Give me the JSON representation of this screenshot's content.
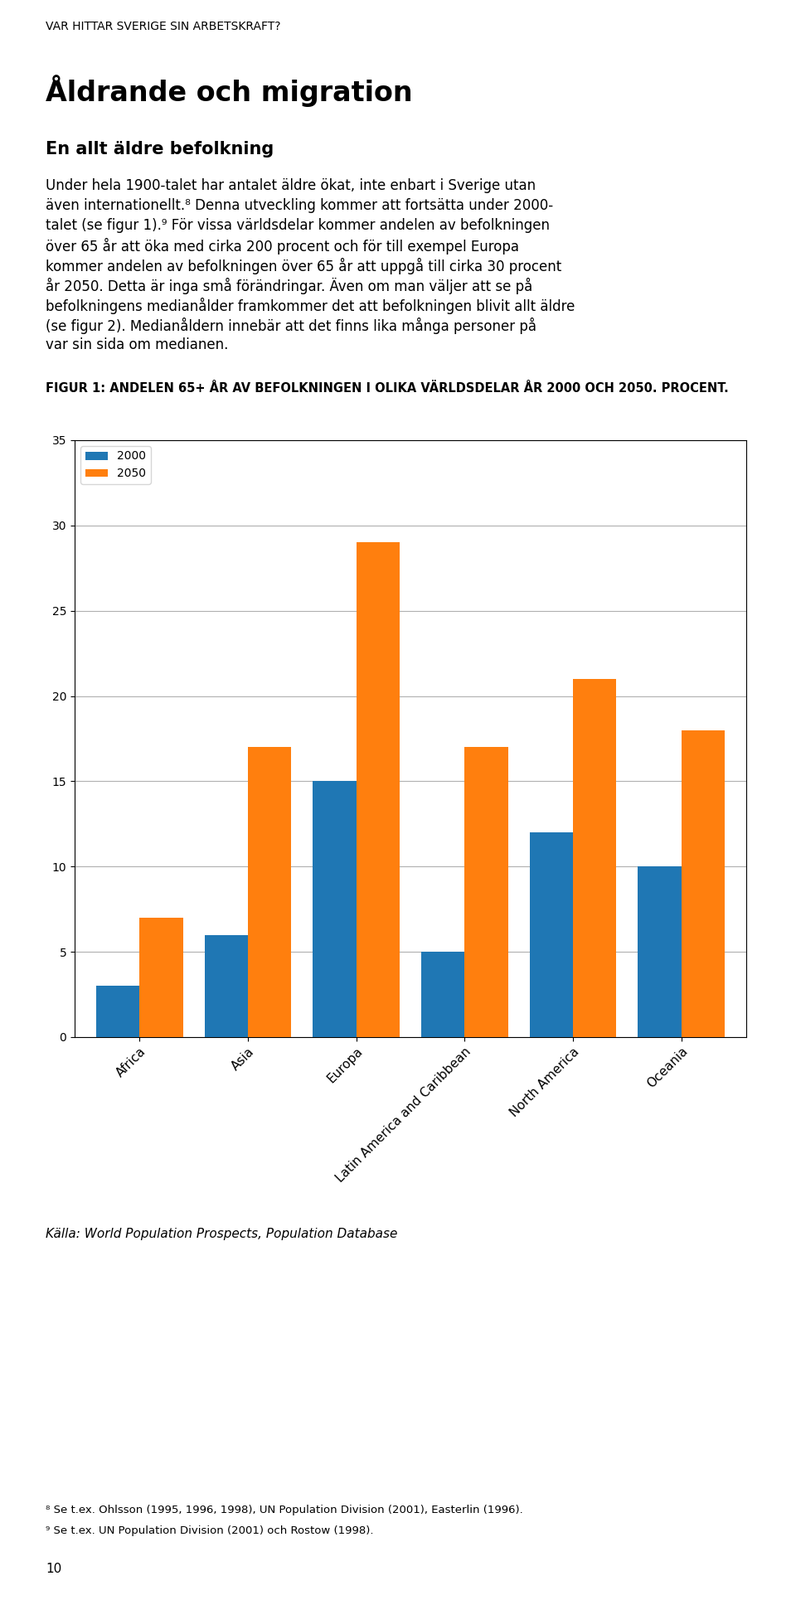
{
  "chart_data": {
    "type": "bar",
    "title": "FIGUR 1: ANDELEN 65+ ÅR AV BEFOLKNINGEN I OLIKA VÄRLDSDELAR ÅR 2000 OCH 2050. PROCENT.",
    "annotations": [
      "VAR HITTAR SVERIGE SIN ARBETSKRAFT?",
      "Åldrande och migration",
      "En allt äldre befolkning",
      "Under hela 1900-talet har antalet äldre ökat, inte enbart i Sverige utan",
      "även internationellt.⁸ Denna utveckling kommer att fortsätta under 2000-",
      "talet (se figur 1).⁹ För vissa världsdelar kommer andelen av befolkningen",
      "över 65 år att öka med cirka 200 procent och för till exempel Europa",
      "kommer andelen av befolkningen över 65 år att uppgå till cirka 30 procent",
      "år 2050. Detta är inga små förändringar. Även om man väljer att se på",
      "befolkningens medianålder framkommer det att befolkningen blivit allt äldre",
      "(se figur 2). Medianåldern innebär att det finns lika många personer på",
      "var sin sida om medianen.",
      "Källa: World Population Prospects, Population Database",
      "⁸ Se t.ex. Ohlsson (1995, 1996, 1998), UN Population Division (2001), Easterlin (1996).",
      "⁹ Se t.ex. UN Population Division (2001) och Rostow (1998).",
      "10"
    ],
    "categories": [
      "Africa",
      "Asia",
      "Europa",
      "Latin America and Caribbean",
      "North America",
      "Oceania"
    ],
    "series": [
      {
        "name": "2000",
        "values": [
          3,
          6,
          15,
          5,
          12,
          10
        ]
      },
      {
        "name": "2050",
        "values": [
          7,
          17,
          29,
          17,
          21,
          18
        ]
      }
    ],
    "ylim": [
      0,
      35
    ],
    "yticks": [
      0,
      5,
      10,
      15,
      20,
      25,
      30,
      35
    ],
    "grid": true,
    "legend": "upper left"
  }
}
